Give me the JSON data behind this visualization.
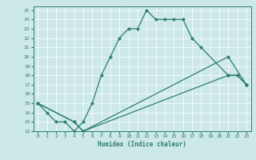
{
  "xlabel": "Humidex (Indice chaleur)",
  "bg_color": "#cce8e8",
  "line_color": "#2e7d6e",
  "xlim": [
    -0.5,
    23.5
  ],
  "ylim": [
    12,
    25.4
  ],
  "xticks": [
    0,
    1,
    2,
    3,
    4,
    5,
    6,
    7,
    8,
    9,
    10,
    11,
    12,
    13,
    14,
    15,
    16,
    17,
    18,
    19,
    20,
    21,
    22,
    23
  ],
  "yticks": [
    12,
    13,
    14,
    15,
    16,
    17,
    18,
    19,
    20,
    21,
    22,
    23,
    24,
    25
  ],
  "line1": {
    "x": [
      0,
      1,
      2,
      3,
      4,
      5,
      6,
      7,
      8,
      9,
      10,
      11,
      12,
      13,
      14,
      15,
      16,
      17,
      18,
      21,
      22,
      23
    ],
    "y": [
      15,
      14,
      13,
      13,
      12,
      13,
      15,
      18,
      20,
      22,
      23,
      23,
      25,
      24,
      24,
      24,
      24,
      22,
      21,
      18,
      18,
      17
    ]
  },
  "line2": {
    "x": [
      0,
      4,
      5,
      21,
      22,
      23
    ],
    "y": [
      15,
      13,
      12,
      18,
      18,
      17
    ]
  },
  "line3": {
    "x": [
      0,
      4,
      5,
      21,
      23
    ],
    "y": [
      15,
      13,
      12,
      20,
      17
    ]
  }
}
